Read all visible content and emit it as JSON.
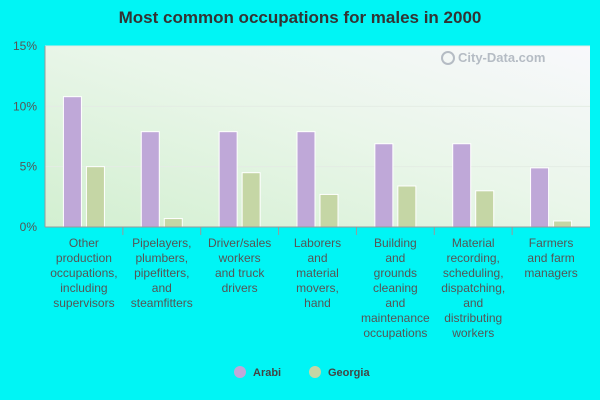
{
  "chart_data": {
    "type": "bar",
    "title": "Most common occupations for males in 2000",
    "ylim": [
      0,
      15
    ],
    "yticks": [
      0,
      5,
      10,
      15
    ],
    "ytick_labels": [
      "0%",
      "5%",
      "10%",
      "15%"
    ],
    "categories": [
      [
        "Other",
        "production",
        "occupations,",
        "including",
        "supervisors"
      ],
      [
        "Pipelayers,",
        "plumbers,",
        "pipefitters,",
        "and",
        "steamfitters"
      ],
      [
        "Driver/sales",
        "workers",
        "and truck",
        "drivers"
      ],
      [
        "Laborers",
        "and",
        "material",
        "movers,",
        "hand"
      ],
      [
        "Building",
        "and",
        "grounds",
        "cleaning",
        "and",
        "maintenance",
        "occupations"
      ],
      [
        "Material",
        "recording,",
        "scheduling,",
        "dispatching,",
        "and",
        "distributing",
        "workers"
      ],
      [
        "Farmers",
        "and farm",
        "managers"
      ]
    ],
    "series": [
      {
        "name": "Arabi",
        "color": "#bfa8d8",
        "values": [
          10.8,
          7.9,
          7.9,
          7.9,
          6.9,
          6.9,
          4.9
        ]
      },
      {
        "name": "Georgia",
        "color": "#c5d6a5",
        "values": [
          5.0,
          0.7,
          4.5,
          2.7,
          3.4,
          3.0,
          0.5
        ]
      }
    ],
    "watermark": "City-Data.com"
  }
}
